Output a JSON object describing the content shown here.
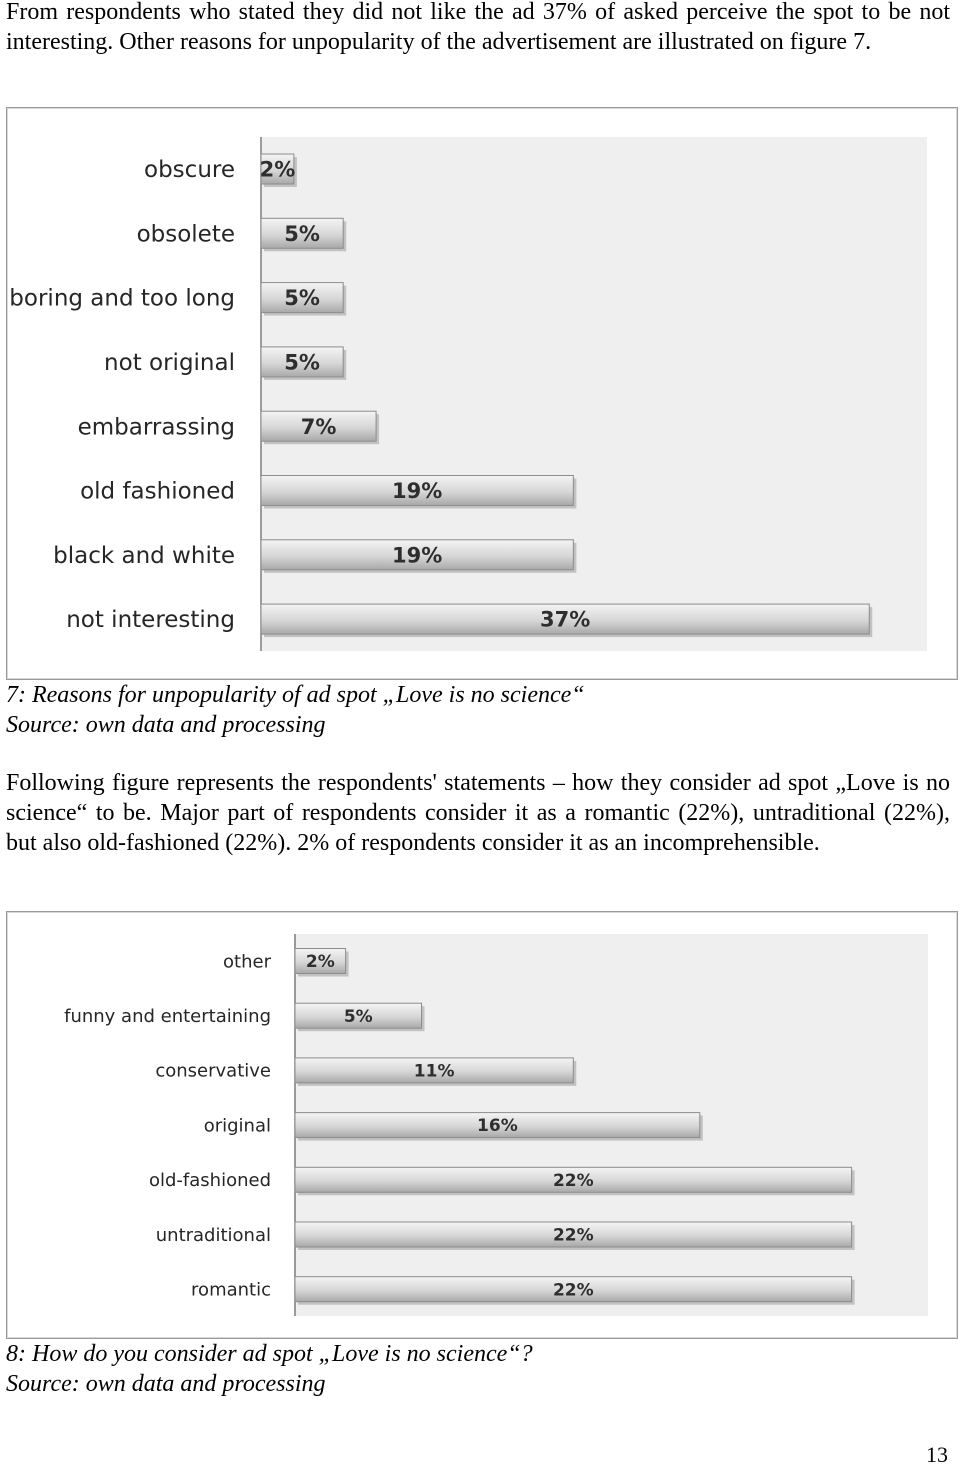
{
  "paragraph_1": "From respondents who stated they did not like the ad 37% of asked perceive the spot to be not interesting. Other reasons for unpopularity of the advertisement are illustrated on figure 7.",
  "figure_7": {
    "caption": "7: Reasons for unpopularity of ad spot „Love is no science“",
    "source": "Source: own data and processing"
  },
  "paragraph_2": "Following figure represents the respondents' statements – how they consider ad spot „Love is no science“ to be. Major part of respondents consider it as a romantic (22%), untraditional (22%), but also old-fashioned (22%). 2% of respondents consider it as an incomprehensible.",
  "figure_8": {
    "caption": "8: How do you consider ad spot „Love is no science“?",
    "source": "Source: own data and processing"
  },
  "page_number": "13",
  "colors": {
    "plot_bg": "#efefef",
    "bar_top": "#f4f4f4",
    "bar_mid": "#d6d6d6",
    "bar_bottom": "#a8a8a8"
  },
  "chart_data": [
    {
      "type": "bar",
      "orientation": "horizontal",
      "categories": [
        "obscure",
        "obsolete",
        "boring and too long",
        "not original",
        "embarrassing",
        "old fashioned",
        "black and white",
        "not interesting"
      ],
      "values": [
        2,
        5,
        5,
        5,
        7,
        19,
        19,
        37
      ],
      "data_labels": [
        "2%",
        "5%",
        "5%",
        "5%",
        "7%",
        "19%",
        "19%",
        "37%"
      ],
      "xlim": [
        0,
        40
      ],
      "grid": false,
      "legend": "none"
    },
    {
      "type": "bar",
      "orientation": "horizontal",
      "categories": [
        "other",
        "funny and entertaining",
        "conservative",
        "original",
        "old-fashioned",
        "untraditional",
        "romantic"
      ],
      "values": [
        2,
        5,
        11,
        16,
        22,
        22,
        22
      ],
      "data_labels": [
        "2%",
        "5%",
        "11%",
        "16%",
        "22%",
        "22%",
        "22%"
      ],
      "xlim": [
        0,
        24
      ],
      "grid": false,
      "legend": "none"
    }
  ]
}
